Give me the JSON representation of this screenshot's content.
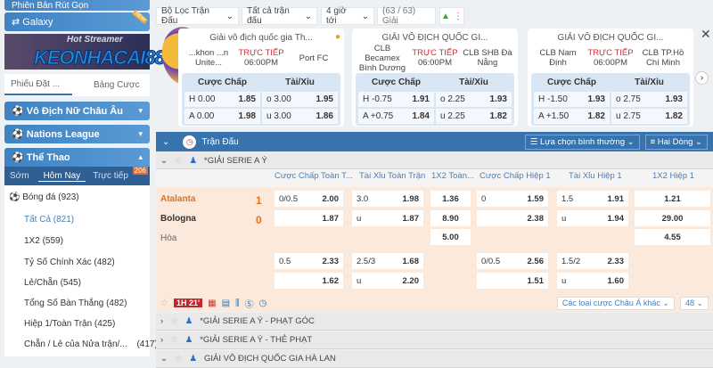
{
  "sidebar": {
    "top_button": "Phiên Bản Rút Gọn",
    "galaxy": "Galaxy",
    "galaxy_badge": "NEW",
    "banner_logo": "KEONHACAI88",
    "banner_text": "Hot Streamer",
    "tabs": [
      "Phiếu Đặt ...",
      "Bảng Cược"
    ],
    "sections": [
      "Vô Địch Nữ Châu Âu",
      "Nations League",
      "Thể Thao"
    ],
    "sport_tabs": [
      "Sớm",
      "Hôm Nay",
      "Trực tiếp"
    ],
    "live_count": "206",
    "sport": "Bóng đá (923)",
    "items": [
      "Tất Cả (821)",
      "1X2 (559)",
      "Tỷ Số Chính Xác (482)",
      "Lẻ/Chẵn (545)",
      "Tổng Số Bàn Thắng (482)",
      "Hiệp 1/Toàn Trận (425)",
      "Chẵn / Lẻ của Nửa trận/...",
      "(417)"
    ]
  },
  "filters": [
    "Bộ Lọc Trận Đấu",
    "Tất cả trận đấu",
    "4 giờ tới",
    "(63 / 63) Giải"
  ],
  "cards": [
    {
      "league": "Giải vô địch quốc gia Th...",
      "home": "...khon ...n Unite...",
      "status": "TRỰC TIẾP",
      "time": "06:00PM",
      "away": "Port FC",
      "hcap": "Cược Chấp",
      "ou": "Tài/Xỉu",
      "rows": [
        [
          "H",
          "0.00",
          "1.85",
          "o",
          "3.00",
          "1.95"
        ],
        [
          "A",
          "0.00",
          "1.98",
          "u",
          "3.00",
          "1.86"
        ]
      ]
    },
    {
      "league": "GIẢI VÔ ĐỊCH QUỐC GI...",
      "home": "CLB Becamex Bình Dương",
      "status": "TRỰC TIẾP",
      "time": "06:00PM",
      "away": "CLB SHB Đà Nẵng",
      "hcap": "Cược Chấp",
      "ou": "Tài/Xỉu",
      "rows": [
        [
          "H",
          "-0.75",
          "1.91",
          "o",
          "2.25",
          "1.93"
        ],
        [
          "A",
          "+0.75",
          "1.84",
          "u",
          "2.25",
          "1.82"
        ]
      ]
    },
    {
      "league": "GIẢI VÔ ĐỊCH QUỐC GI...",
      "home": "CLB Nam Định",
      "status": "TRỰC TIẾP",
      "time": "06:00PM",
      "away": "CLB TP.Hồ Chí Minh",
      "hcap": "Cược Chấp",
      "ou": "Tài/Xỉu",
      "rows": [
        [
          "H",
          "-1.50",
          "1.93",
          "o",
          "2.75",
          "1.93"
        ],
        [
          "A",
          "+1.50",
          "1.82",
          "u",
          "2.75",
          "1.82"
        ]
      ]
    }
  ],
  "bar": {
    "title": "Trận Đấu",
    "select1": "Lựa chọn bình thường",
    "select2": "Hai Dòng"
  },
  "league": "*GIẢI SERIE A Ý",
  "headers": [
    "Cược Chấp Toàn T...",
    "Tài Xỉu Toàn Trận",
    "1X2 Toàn...",
    "Cược Chấp Hiệp 1",
    "Tài Xỉu Hiệp 1",
    "1X2 Hiệp 1"
  ],
  "match": {
    "home": "Atalanta",
    "home_score": "1",
    "away": "Bologna",
    "away_score": "0",
    "draw": "Hòa",
    "line1": {
      "c1": [
        "0/0.5",
        "2.00",
        "",
        "1.87"
      ],
      "c2": [
        "3.0",
        "1.98",
        "u",
        "1.87"
      ],
      "c3": [
        "1.36",
        "8.90",
        "5.00"
      ],
      "c4": [
        "0",
        "1.59",
        "",
        "2.38"
      ],
      "c5": [
        "1.5",
        "1.91",
        "u",
        "1.94"
      ],
      "c6": [
        "1.21",
        "29.00",
        "4.55"
      ]
    },
    "line2": {
      "c1": [
        "0.5",
        "2.33",
        "",
        "1.62"
      ],
      "c2": [
        "2.5/3",
        "1.68",
        "u",
        "2.20"
      ],
      "c4": [
        "0/0.5",
        "2.56",
        "",
        "1.51"
      ],
      "c5": [
        "1.5/2",
        "2.33",
        "u",
        "1.60"
      ]
    },
    "live_time": "1H 21'",
    "other_bets": "Các loại cược Châu Á khác",
    "count": "48"
  },
  "other_leagues": [
    "*GIẢI SERIE A Ý - PHẠT GÓC",
    "*GIẢI SERIE A Ý - THẺ PHẠT",
    "GIẢI VÔ ĐỊCH QUỐC GIA HÀ LAN"
  ]
}
